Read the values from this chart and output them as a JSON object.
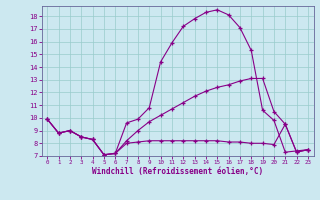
{
  "xlabel": "Windchill (Refroidissement éolien,°C)",
  "xlim": [
    -0.5,
    23.5
  ],
  "ylim": [
    7,
    18.8
  ],
  "xticks": [
    0,
    1,
    2,
    3,
    4,
    5,
    6,
    7,
    8,
    9,
    10,
    11,
    12,
    13,
    14,
    15,
    16,
    17,
    18,
    19,
    20,
    21,
    22,
    23
  ],
  "yticks": [
    7,
    8,
    9,
    10,
    11,
    12,
    13,
    14,
    15,
    16,
    17,
    18
  ],
  "bg_color": "#cce8f0",
  "line_color": "#880088",
  "grid_color": "#99cccc",
  "line1_y": [
    9.9,
    8.8,
    9.0,
    8.5,
    8.3,
    7.1,
    7.2,
    9.6,
    9.9,
    10.8,
    14.4,
    15.9,
    17.2,
    17.8,
    18.3,
    18.5,
    18.1,
    17.1,
    15.3,
    10.6,
    9.8,
    7.3,
    7.4,
    7.5
  ],
  "line2_y": [
    9.9,
    8.8,
    9.0,
    8.5,
    8.3,
    7.1,
    7.2,
    8.2,
    9.0,
    9.7,
    10.2,
    10.7,
    11.2,
    11.7,
    12.1,
    12.4,
    12.6,
    12.9,
    13.1,
    13.1,
    10.5,
    9.5,
    7.3,
    7.5
  ],
  "line3_y": [
    9.9,
    8.8,
    9.0,
    8.5,
    8.3,
    7.1,
    7.2,
    8.0,
    8.1,
    8.2,
    8.2,
    8.2,
    8.2,
    8.2,
    8.2,
    8.2,
    8.1,
    8.1,
    8.0,
    8.0,
    7.9,
    9.5,
    7.3,
    7.5
  ]
}
